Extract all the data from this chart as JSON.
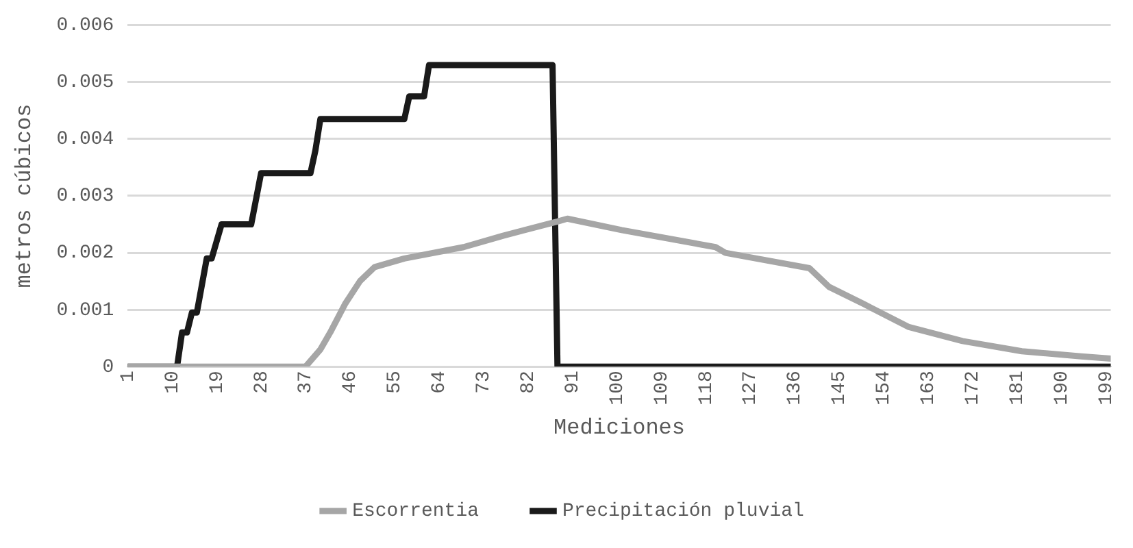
{
  "chart_data": {
    "type": "line",
    "xlabel": "Mediciones",
    "ylabel": "metros cúbicos",
    "xlim": [
      1,
      200
    ],
    "xticks": [
      1,
      10,
      19,
      28,
      37,
      46,
      55,
      64,
      73,
      82,
      91,
      100,
      109,
      118,
      127,
      136,
      145,
      154,
      163,
      172,
      181,
      190,
      199
    ],
    "ylim": [
      0,
      0.006
    ],
    "yticks": [
      0,
      0.001,
      0.002,
      0.003,
      0.004,
      0.005,
      0.006
    ],
    "grid": "y",
    "legend": "bottom",
    "marker": "none",
    "line_style": "solid",
    "series": [
      {
        "name": "Escorrentia",
        "color": "#a6a6a6",
        "x": [
          1,
          37,
          40,
          42,
          45,
          48,
          51,
          57,
          69,
          77,
          88,
          90,
          101,
          120,
          122,
          139,
          143,
          150,
          159,
          170,
          182,
          194,
          200
        ],
        "values": [
          0,
          0,
          0.0003,
          0.0006,
          0.0011,
          0.0015,
          0.00175,
          0.0019,
          0.0021,
          0.0023,
          0.00255,
          0.0026,
          0.0024,
          0.0021,
          0.002,
          0.00173,
          0.0014,
          0.0011,
          0.0007,
          0.00045,
          0.00027,
          0.00018,
          0.00014
        ]
      },
      {
        "name": "Precipitación pluvial",
        "color": "#1a1a1a",
        "x": [
          1,
          11,
          12,
          13,
          14,
          15,
          17,
          18,
          20,
          26,
          28,
          38,
          39,
          40,
          57,
          58,
          61,
          62,
          87,
          88,
          200
        ],
        "values": [
          0,
          0,
          0.0006,
          0.0006,
          0.00095,
          0.00095,
          0.0019,
          0.0019,
          0.0025,
          0.0025,
          0.0034,
          0.0034,
          0.0038,
          0.00435,
          0.00435,
          0.00475,
          0.00475,
          0.0053,
          0.0053,
          0,
          0
        ]
      }
    ]
  }
}
